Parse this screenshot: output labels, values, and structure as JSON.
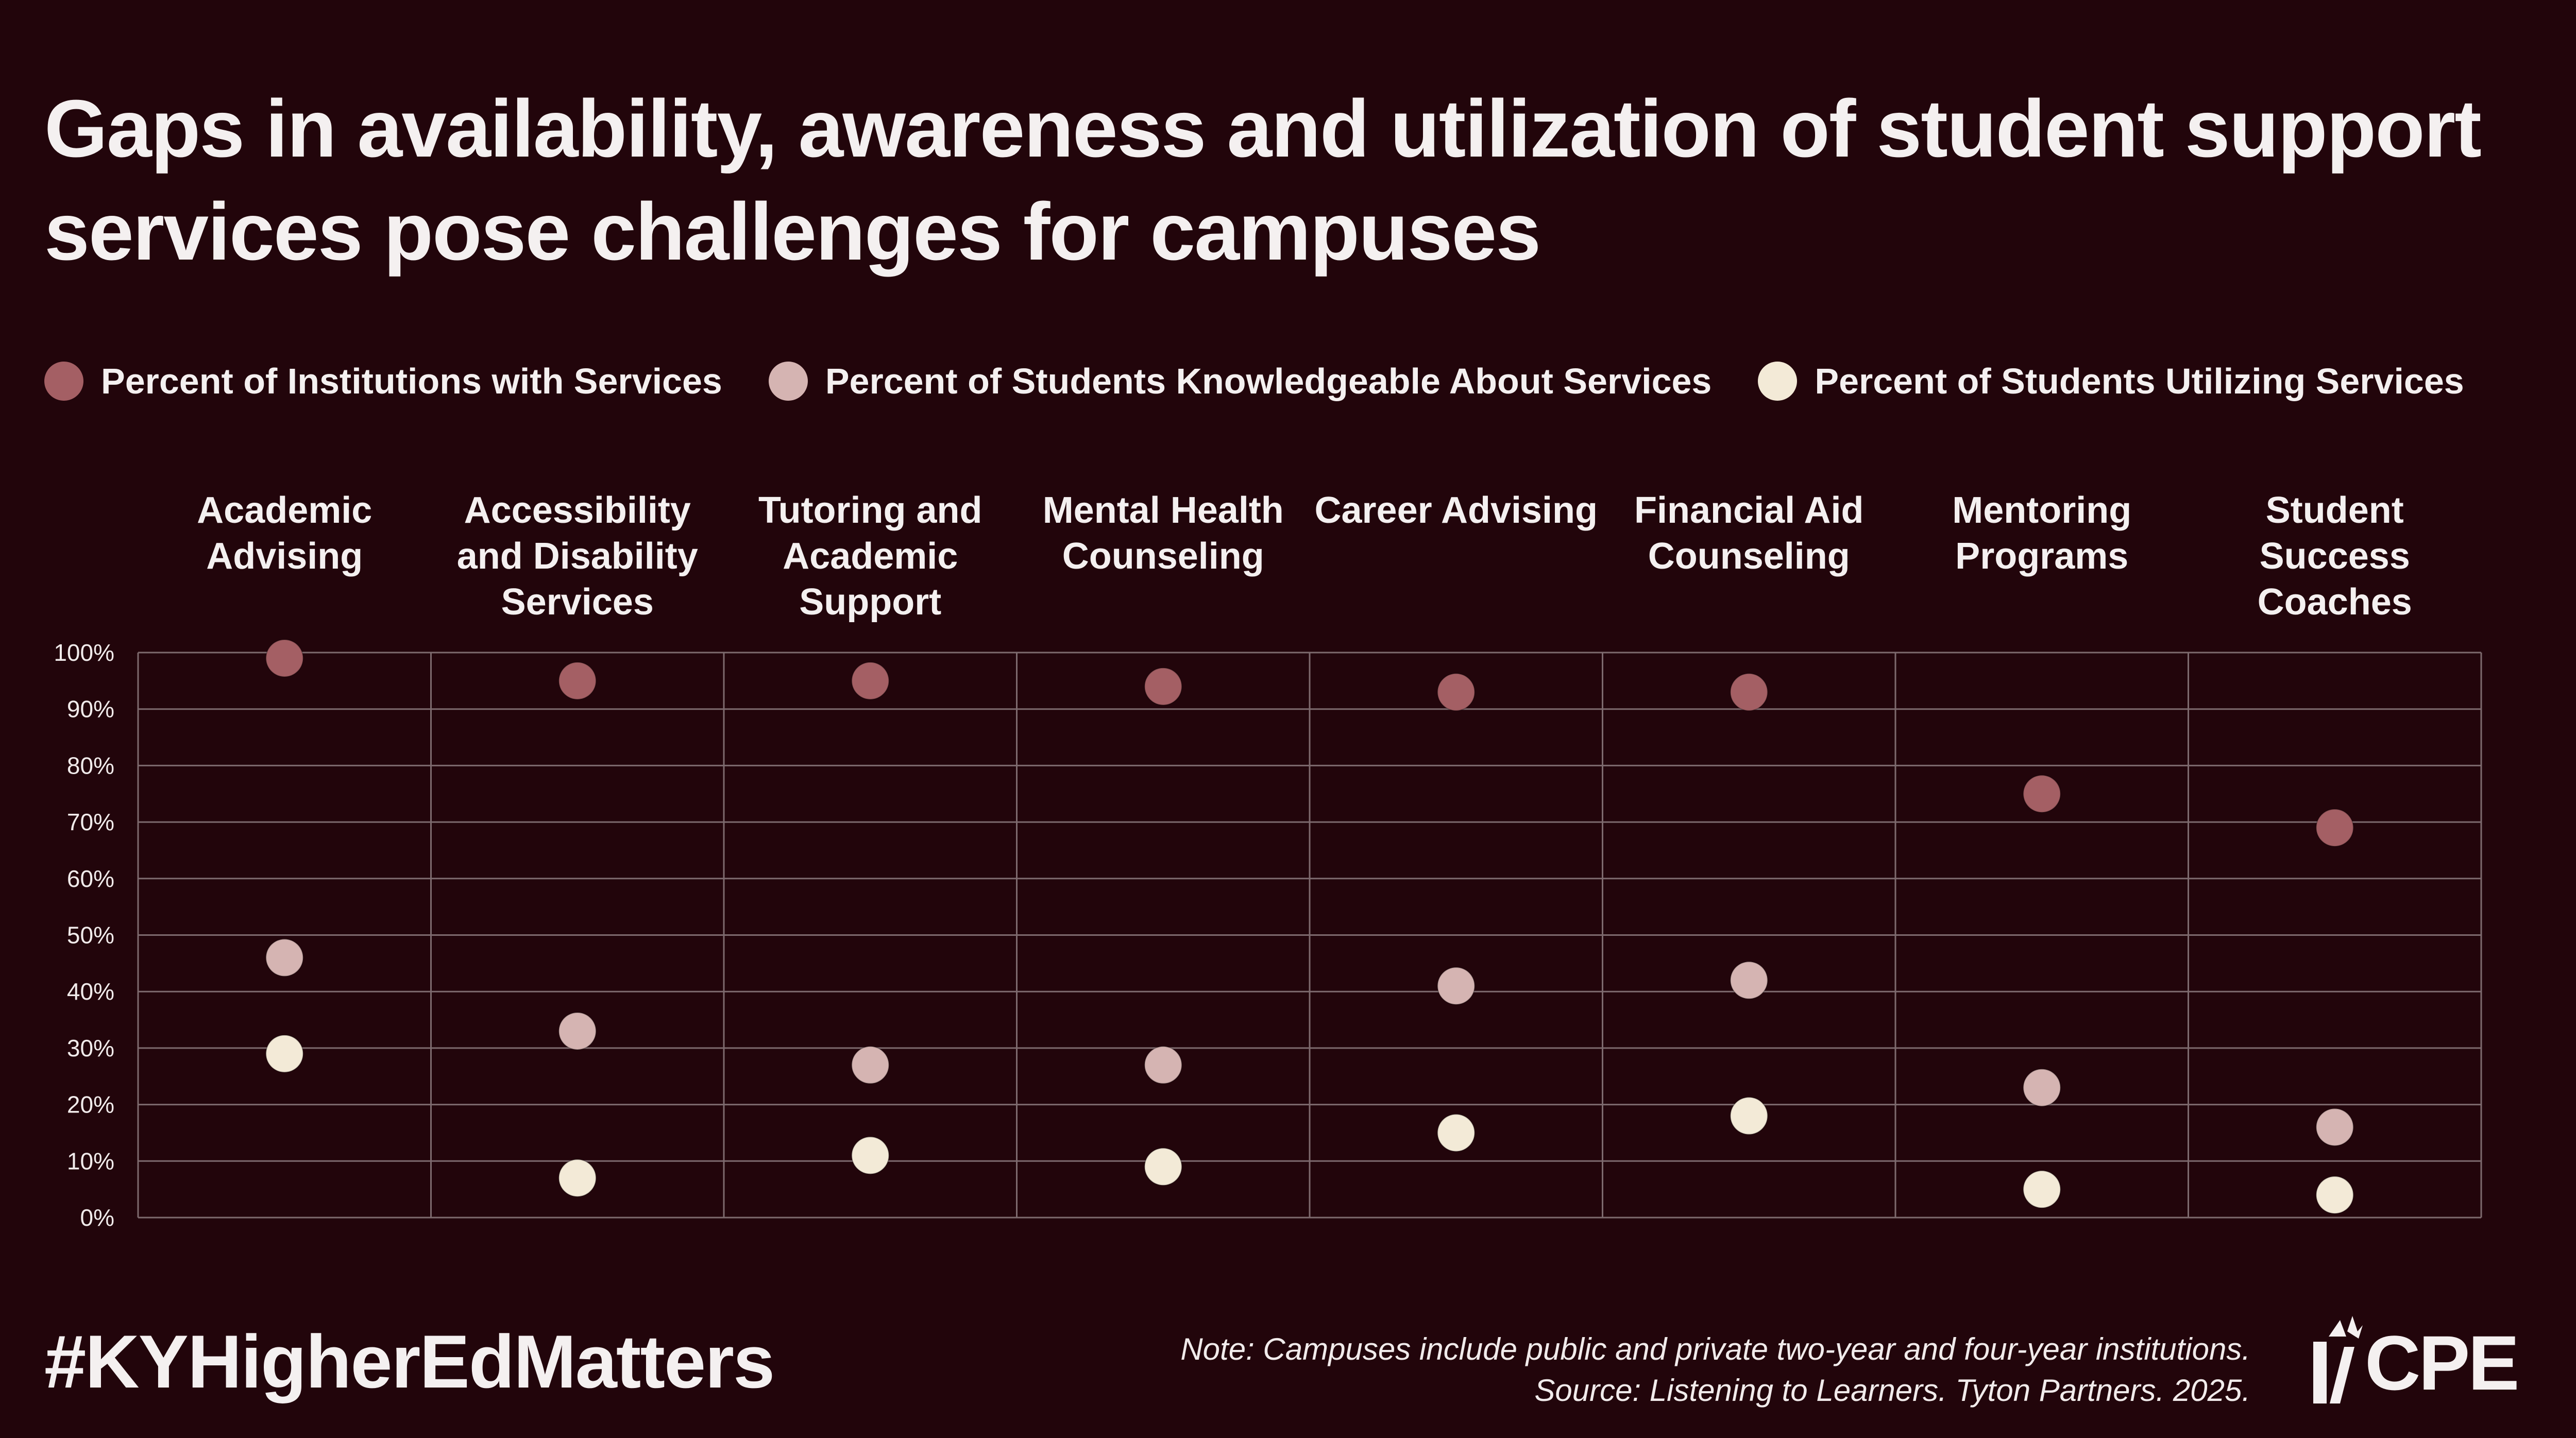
{
  "title_lines": [
    "Gaps in availability, awareness and utilization of student support",
    "services pose challenges for campuses"
  ],
  "colors": {
    "background": "#22050b",
    "institutions": "#a45f64",
    "knowledgeable": "#d5b4b2",
    "utilizing": "#f3ead7",
    "grid": "#7d6a6e"
  },
  "chart_data": {
    "type": "scatter",
    "categories": [
      [
        "Academic",
        "Advising"
      ],
      [
        "Accessibility",
        "and Disability",
        "Services"
      ],
      [
        "Tutoring and",
        "Academic",
        "Support"
      ],
      [
        "Mental Health",
        "Counseling"
      ],
      [
        "Career Advising"
      ],
      [
        "Financial Aid",
        "Counseling"
      ],
      [
        "Mentoring",
        "Programs"
      ],
      [
        "Student",
        "Success",
        "Coaches"
      ]
    ],
    "series": [
      {
        "name": "Percent of Institutions with Services",
        "color": "#a45f64",
        "values": [
          99,
          95,
          95,
          94,
          93,
          93,
          75,
          69
        ]
      },
      {
        "name": "Percent of Students Knowledgeable About Services",
        "color": "#d5b4b2",
        "values": [
          46,
          33,
          27,
          27,
          41,
          42,
          23,
          16
        ]
      },
      {
        "name": "Percent of Students Utilizing Services",
        "color": "#f3ead7",
        "values": [
          29,
          7,
          11,
          9,
          15,
          18,
          5,
          4
        ]
      }
    ],
    "ylim": [
      0,
      100
    ],
    "yticks": [
      "0%",
      "10%",
      "20%",
      "30%",
      "40%",
      "50%",
      "60%",
      "70%",
      "80%",
      "90%",
      "100%"
    ],
    "grid": true,
    "legend": "top-left"
  },
  "footer": {
    "hashtag": "#KYHigherEdMatters",
    "note": "Note: Campuses include public and private two-year and four-year institutions.",
    "source": "Source: Listening to Learners. Tyton Partners. 2025.",
    "logo_text": "CPE"
  }
}
